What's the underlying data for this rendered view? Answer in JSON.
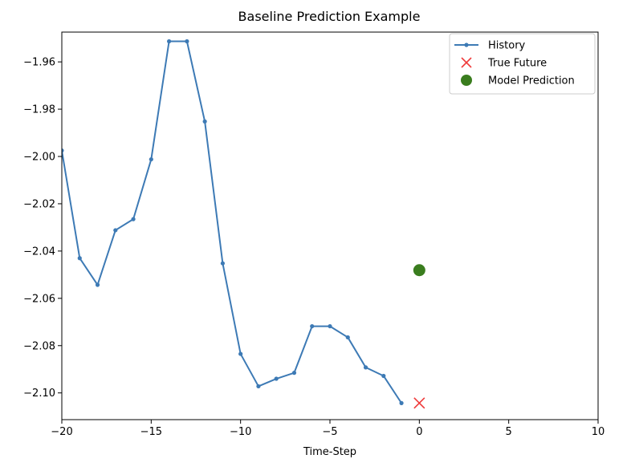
{
  "chart_data": {
    "type": "line",
    "title": "Baseline Prediction Example",
    "xlabel": "Time-Step",
    "ylabel": "",
    "xlim": [
      -20,
      10
    ],
    "ylim": [
      -2.1113,
      -1.9474
    ],
    "x_ticks": [
      -20,
      -15,
      -10,
      -5,
      0,
      5,
      10
    ],
    "x_tick_labels": [
      "−20",
      "−15",
      "−10",
      "−5",
      "0",
      "5",
      "10"
    ],
    "y_ticks": [
      -1.96,
      -1.98,
      -2.0,
      -2.02,
      -2.04,
      -2.06,
      -2.08,
      -2.1
    ],
    "y_tick_labels": [
      "−1.96",
      "−1.98",
      "−2.00",
      "−2.02",
      "−2.04",
      "−2.06",
      "−2.08",
      "−2.10"
    ],
    "grid": false,
    "legend_position": "top-right",
    "series": [
      {
        "name": "History",
        "kind": "line-with-markers",
        "color": "#3d7ab5",
        "x": [
          -20,
          -19,
          -18,
          -17,
          -16,
          -15,
          -14,
          -13,
          -12,
          -11,
          -10,
          -9,
          -8,
          -7,
          -6,
          -5,
          -4,
          -3,
          -2,
          -1
        ],
        "y": [
          -1.9975,
          -2.043,
          -2.0543,
          -2.0312,
          -2.0265,
          -2.0012,
          -1.9513,
          -1.9513,
          -1.9852,
          -2.0452,
          -2.0835,
          -2.0972,
          -2.094,
          -2.0915,
          -2.0718,
          -2.0718,
          -2.0765,
          -2.0892,
          -2.0928,
          -2.1043
        ]
      },
      {
        "name": "True Future",
        "kind": "x-marker",
        "color": "#ef3b3b",
        "x": [
          0
        ],
        "y": [
          -2.1043
        ]
      },
      {
        "name": "Model Prediction",
        "kind": "circle-marker",
        "color": "#3a7d1e",
        "x": [
          0
        ],
        "y": [
          -2.0481
        ]
      }
    ]
  }
}
